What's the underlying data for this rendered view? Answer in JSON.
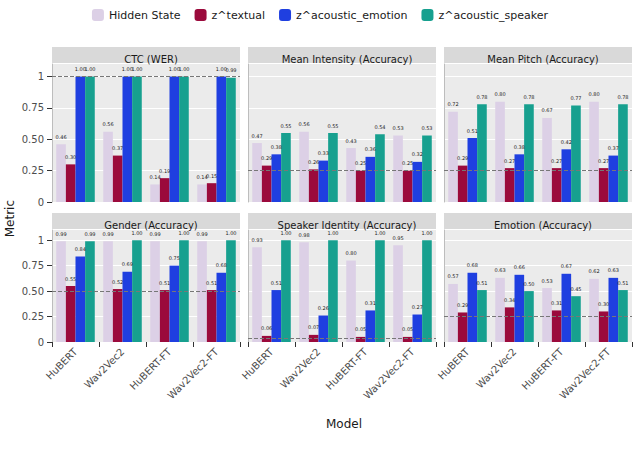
{
  "chart_data": [
    {
      "type": "bar",
      "title": "CTC (WER)",
      "y_label": "Metric",
      "categories": [
        "HuBERT",
        "Wav2Vec2",
        "HuBERT-FT",
        "Wav2Vec2-FT"
      ],
      "series": [
        {
          "name": "Hidden State",
          "color": "#dcd0e6",
          "values": [
            0.46,
            0.56,
            0.14,
            0.14
          ],
          "value_labels": [
            "0.46",
            "0.56",
            "0.14",
            "0.14"
          ]
        },
        {
          "name": "z^textual",
          "color": "#9b0a3c",
          "values": [
            0.3,
            0.37,
            0.19,
            0.15
          ],
          "value_labels": [
            "0.30",
            "0.37",
            "0.19",
            "0.15"
          ]
        },
        {
          "name": "z^acoustic_emotion",
          "color": "#1f3fe0",
          "values": [
            1.0,
            1.0,
            1.0,
            1.0
          ],
          "value_labels": [
            "1.00",
            "1.00",
            "1.00",
            "1.00"
          ]
        },
        {
          "name": "z^acoustic_speaker",
          "color": "#17a08f",
          "values": [
            1.0,
            1.0,
            1.0,
            0.99
          ],
          "value_labels": [
            "1.00",
            "1.00",
            "1.00",
            "0.99"
          ]
        }
      ],
      "baseline": 1,
      "ylim": [
        0,
        1.1
      ],
      "yticks": [
        0,
        0.25,
        {
          "value": 0.5,
          "label": "0.50"
        },
        0.75,
        1
      ],
      "grid": true,
      "data_labels": true
    },
    {
      "type": "bar",
      "title": "Mean Intensity (Accuracy)",
      "categories": [
        "HuBERT",
        "Wav2Vec2",
        "HuBERT-FT",
        "Wav2Vec2-FT"
      ],
      "series": [
        {
          "name": "Hidden State",
          "color": "#dcd0e6",
          "values": [
            0.47,
            0.56,
            0.43,
            0.53
          ],
          "value_labels": [
            "0.47",
            "0.56",
            "0.43",
            "0.53"
          ]
        },
        {
          "name": "z^textual",
          "color": "#9b0a3c",
          "values": [
            0.29,
            0.26,
            0.25,
            0.25
          ],
          "value_labels": [
            "0.29",
            "0.26",
            "0.25",
            "0.25"
          ]
        },
        {
          "name": "z^acoustic_emotion",
          "color": "#1f3fe0",
          "values": [
            0.38,
            0.33,
            0.36,
            0.32
          ],
          "value_labels": [
            "0.38",
            "0.33",
            "0.36",
            "0.32"
          ]
        },
        {
          "name": "z^acoustic_speaker",
          "color": "#17a08f",
          "values": [
            0.55,
            0.55,
            0.54,
            0.53
          ],
          "value_labels": [
            "0.55",
            "0.55",
            "0.54",
            "0.53"
          ]
        }
      ],
      "baseline": 0.25,
      "ylim": [
        0,
        1.1
      ],
      "yticks": [
        0,
        0.25,
        {
          "value": 0.5,
          "label": "0.50"
        },
        0.75,
        1
      ],
      "grid": true,
      "data_labels": true
    },
    {
      "type": "bar",
      "title": "Mean Pitch (Accuracy)",
      "categories": [
        "HuBERT",
        "Wav2Vec2",
        "HuBERT-FT",
        "Wav2Vec2-FT"
      ],
      "series": [
        {
          "name": "Hidden State",
          "color": "#dcd0e6",
          "values": [
            0.72,
            0.8,
            0.67,
            0.8
          ],
          "value_labels": [
            "0.72",
            "0.80",
            "0.67",
            "0.80"
          ]
        },
        {
          "name": "z^textual",
          "color": "#9b0a3c",
          "values": [
            0.29,
            0.27,
            0.27,
            0.27
          ],
          "value_labels": [
            "0.29",
            "0.27",
            "0.27",
            "0.27"
          ]
        },
        {
          "name": "z^acoustic_emotion",
          "color": "#1f3fe0",
          "values": [
            0.51,
            0.38,
            0.42,
            0.37
          ],
          "value_labels": [
            "0.51",
            "0.38",
            "0.42",
            "0.37"
          ]
        },
        {
          "name": "z^acoustic_speaker",
          "color": "#17a08f",
          "values": [
            0.78,
            0.78,
            0.77,
            0.78
          ],
          "value_labels": [
            "0.78",
            "0.78",
            "0.77",
            "0.78"
          ]
        }
      ],
      "baseline": 0.25,
      "ylim": [
        0,
        1.1
      ],
      "yticks": [
        0,
        0.25,
        {
          "value": 0.5,
          "label": "0.50"
        },
        0.75,
        1
      ],
      "grid": true,
      "data_labels": true
    },
    {
      "type": "bar",
      "title": "Gender (Accuracy)",
      "categories": [
        "HuBERT",
        "Wav2Vec2",
        "HuBERT-FT",
        "Wav2Vec2-FT"
      ],
      "series": [
        {
          "name": "Hidden State",
          "color": "#dcd0e6",
          "values": [
            0.99,
            0.99,
            0.99,
            0.99
          ],
          "value_labels": [
            "0.99",
            "0.99",
            "0.99",
            "0.99"
          ]
        },
        {
          "name": "z^textual",
          "color": "#9b0a3c",
          "values": [
            0.55,
            0.52,
            0.51,
            0.51
          ],
          "value_labels": [
            "0.55",
            "0.52",
            "0.51",
            "0.51"
          ]
        },
        {
          "name": "z^acoustic_emotion",
          "color": "#1f3fe0",
          "values": [
            0.84,
            0.69,
            0.75,
            0.68
          ],
          "value_labels": [
            "0.84",
            "0.69",
            "0.75",
            "0.68"
          ]
        },
        {
          "name": "z^acoustic_speaker",
          "color": "#17a08f",
          "values": [
            0.99,
            1.0,
            1.0,
            1.0
          ],
          "value_labels": [
            "0.99",
            "1.00",
            "1.00",
            "1.00"
          ]
        }
      ],
      "baseline": 0.5,
      "ylim": [
        0,
        1.1
      ],
      "yticks": [
        0,
        0.25,
        {
          "value": 0.5,
          "label": "0.50"
        },
        0.75,
        1
      ],
      "grid": true,
      "data_labels": true
    },
    {
      "type": "bar",
      "title": "Speaker Identity (Accuracy)",
      "x_label": "Model",
      "categories": [
        "HuBERT",
        "Wav2Vec2",
        "HuBERT-FT",
        "Wav2Vec2-FT"
      ],
      "series": [
        {
          "name": "Hidden State",
          "color": "#dcd0e6",
          "values": [
            0.93,
            0.98,
            0.8,
            0.95
          ],
          "value_labels": [
            "0.93",
            "0.98",
            "0.80",
            "0.95"
          ]
        },
        {
          "name": "z^textual",
          "color": "#9b0a3c",
          "values": [
            0.06,
            0.07,
            0.05,
            0.05
          ],
          "value_labels": [
            "0.06",
            "0.07",
            "0.05",
            "0.05"
          ]
        },
        {
          "name": "z^acoustic_emotion",
          "color": "#1f3fe0",
          "values": [
            0.51,
            0.26,
            0.31,
            0.27
          ],
          "value_labels": [
            "0.51",
            "0.26",
            "0.31",
            "0.27"
          ]
        },
        {
          "name": "z^acoustic_speaker",
          "color": "#17a08f",
          "values": [
            1.0,
            1.0,
            1.0,
            1.0
          ],
          "value_labels": [
            "1.00",
            "1.00",
            "1.00",
            "1.00"
          ]
        }
      ],
      "baseline": 0.04,
      "ylim": [
        0,
        1.1
      ],
      "yticks": [
        0,
        0.25,
        {
          "value": 0.5,
          "label": "0.50"
        },
        0.75,
        1
      ],
      "grid": true,
      "data_labels": true
    },
    {
      "type": "bar",
      "title": "Emotion (Accuracy)",
      "categories": [
        "HuBERT",
        "Wav2Vec2",
        "HuBERT-FT",
        "Wav2Vec2-FT"
      ],
      "series": [
        {
          "name": "Hidden State",
          "color": "#dcd0e6",
          "values": [
            0.57,
            0.63,
            0.53,
            0.62
          ],
          "value_labels": [
            "0.57",
            "0.63",
            "0.53",
            "0.62"
          ]
        },
        {
          "name": "z^textual",
          "color": "#9b0a3c",
          "values": [
            0.29,
            0.34,
            0.31,
            0.3
          ],
          "value_labels": [
            "0.29",
            "0.34",
            "0.31",
            "0.30"
          ]
        },
        {
          "name": "z^acoustic_emotion",
          "color": "#1f3fe0",
          "values": [
            0.68,
            0.66,
            0.67,
            0.63
          ],
          "value_labels": [
            "0.68",
            "0.66",
            "0.67",
            "0.63"
          ]
        },
        {
          "name": "z^acoustic_speaker",
          "color": "#17a08f",
          "values": [
            0.51,
            0.5,
            0.45,
            0.51
          ],
          "value_labels": [
            "0.51",
            "0.50",
            "0.45",
            "0.51"
          ]
        }
      ],
      "baseline": 0.25,
      "ylim": [
        0,
        1.1
      ],
      "yticks": [
        0,
        0.25,
        {
          "value": 0.5,
          "label": "0.50"
        },
        0.75,
        1
      ],
      "grid": true,
      "data_labels": true
    }
  ]
}
